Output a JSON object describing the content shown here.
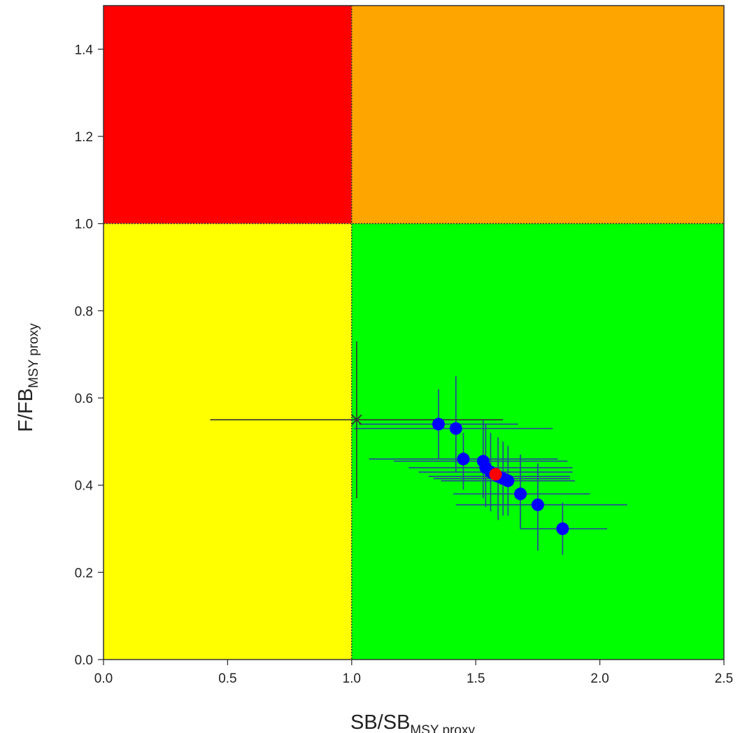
{
  "chart_data": {
    "type": "scatter",
    "title": "",
    "xlabel": {
      "main": "SB/SB",
      "sub": "MSY proxy"
    },
    "ylabel": {
      "main": "F/FB",
      "sub": "MSY proxy"
    },
    "xlim": [
      0,
      2.5
    ],
    "ylim": [
      0,
      1.5
    ],
    "xticks": [
      0.0,
      0.5,
      1.0,
      1.5,
      2.0,
      2.5
    ],
    "xtick_labels": [
      "0.0",
      "0.5",
      "1.0",
      "1.5",
      "2.0",
      "2.5"
    ],
    "yticks": [
      0.0,
      0.2,
      0.4,
      0.6,
      0.8,
      1.0,
      1.2,
      1.4
    ],
    "ytick_labels": [
      "0.0",
      "0.2",
      "0.4",
      "0.6",
      "0.8",
      "1.0",
      "1.2",
      "1.4"
    ],
    "grid": false,
    "legend": "none",
    "zones": [
      {
        "x": [
          0,
          1
        ],
        "y": [
          1,
          1.5
        ],
        "color": "#ff0000"
      },
      {
        "x": [
          1,
          2.5
        ],
        "y": [
          1,
          1.5
        ],
        "color": "#ffa500"
      },
      {
        "x": [
          0,
          1
        ],
        "y": [
          0,
          1
        ],
        "color": "#ffff00"
      },
      {
        "x": [
          1,
          2.5
        ],
        "y": [
          0,
          1
        ],
        "color": "#00ff00"
      }
    ],
    "reference_lines": [
      {
        "orientation": "horizontal",
        "value": 1.0,
        "style": "dotted"
      },
      {
        "orientation": "vertical",
        "value": 1.0,
        "style": "dotted"
      }
    ],
    "series": [
      {
        "marker": "circle",
        "color": "#0000ff",
        "errorbar_color": "#2a3fa0",
        "points": [
          {
            "x": 1.35,
            "y": 0.54,
            "xerr": [
              1.03,
              1.67
            ],
            "yerr": [
              0.46,
              0.62
            ]
          },
          {
            "x": 1.42,
            "y": 0.53,
            "xerr": [
              1.01,
              1.81
            ],
            "yerr": [
              0.43,
              0.65
            ]
          },
          {
            "x": 1.45,
            "y": 0.46,
            "xerr": [
              1.07,
              1.83
            ],
            "yerr": [
              0.39,
              0.52
            ]
          },
          {
            "x": 1.53,
            "y": 0.455,
            "xerr": [
              1.17,
              1.87
            ],
            "yerr": [
              0.37,
              0.55
            ]
          },
          {
            "x": 1.54,
            "y": 0.44,
            "xerr": [
              1.23,
              1.89
            ],
            "yerr": [
              0.35,
              0.54
            ]
          },
          {
            "x": 1.56,
            "y": 0.43,
            "xerr": [
              1.27,
              1.89
            ],
            "yerr": [
              0.34,
              0.52
            ]
          },
          {
            "x": 1.59,
            "y": 0.42,
            "xerr": [
              1.31,
              1.88
            ],
            "yerr": [
              0.32,
              0.51
            ]
          },
          {
            "x": 1.61,
            "y": 0.415,
            "xerr": [
              1.33,
              1.88
            ],
            "yerr": [
              0.33,
              0.5
            ]
          },
          {
            "x": 1.63,
            "y": 0.41,
            "xerr": [
              1.36,
              1.9
            ],
            "yerr": [
              0.33,
              0.49
            ]
          },
          {
            "x": 1.68,
            "y": 0.38,
            "xerr": [
              1.41,
              1.96
            ],
            "yerr": [
              0.3,
              0.47
            ]
          },
          {
            "x": 1.75,
            "y": 0.355,
            "xerr": [
              1.42,
              2.11
            ],
            "yerr": [
              0.25,
              0.45
            ]
          },
          {
            "x": 1.85,
            "y": 0.3,
            "xerr": [
              1.68,
              2.03
            ],
            "yerr": [
              0.24,
              0.36
            ]
          }
        ]
      },
      {
        "marker": "circle",
        "color": "#ff0000",
        "points": [
          {
            "x": 1.58,
            "y": 0.425
          }
        ]
      },
      {
        "marker": "cross",
        "color": "#333333",
        "points": [
          {
            "x": 1.02,
            "y": 0.55,
            "xerr": [
              0.43,
              1.61
            ],
            "yerr": [
              0.37,
              0.73
            ]
          }
        ]
      }
    ]
  }
}
